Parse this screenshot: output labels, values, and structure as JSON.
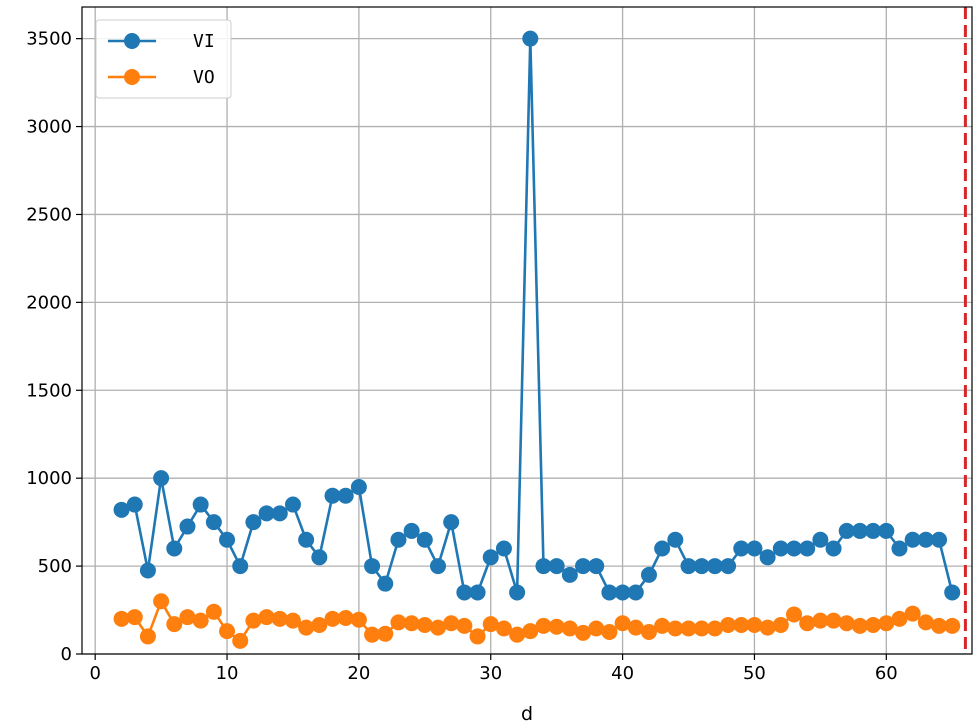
{
  "chart_data": {
    "type": "line",
    "xlabel": "d",
    "ylabel": "",
    "xlim": [
      -1,
      66.5
    ],
    "ylim": [
      0,
      3680
    ],
    "xticks": [
      0,
      10,
      20,
      30,
      40,
      50,
      60
    ],
    "yticks": [
      0,
      500,
      1000,
      1500,
      2000,
      2500,
      3000,
      3500
    ],
    "grid": true,
    "legend_position": "top-left",
    "vline": {
      "x": 66,
      "color": "#d62728",
      "style": "dashed"
    },
    "x": [
      2,
      3,
      4,
      5,
      6,
      7,
      8,
      9,
      10,
      11,
      12,
      13,
      14,
      15,
      16,
      17,
      18,
      19,
      20,
      21,
      22,
      23,
      24,
      25,
      26,
      27,
      28,
      29,
      30,
      31,
      32,
      33,
      34,
      35,
      36,
      37,
      38,
      39,
      40,
      41,
      42,
      43,
      44,
      45,
      46,
      47,
      48,
      49,
      50,
      51,
      52,
      53,
      54,
      55,
      56,
      57,
      58,
      59,
      60,
      61,
      62,
      63,
      64,
      65
    ],
    "series": [
      {
        "name": "VI",
        "color": "#1f77b4",
        "values": [
          820,
          850,
          475,
          1000,
          600,
          725,
          850,
          750,
          650,
          500,
          750,
          800,
          800,
          850,
          650,
          550,
          900,
          900,
          950,
          500,
          400,
          650,
          700,
          650,
          500,
          750,
          350,
          350,
          550,
          600,
          350,
          3500,
          500,
          500,
          450,
          500,
          500,
          350,
          350,
          350,
          450,
          600,
          650,
          500,
          500,
          500,
          500,
          600,
          600,
          550,
          600,
          600,
          600,
          650,
          600,
          700,
          700,
          700,
          700,
          600,
          650,
          650,
          650,
          350
        ]
      },
      {
        "name": "VO",
        "color": "#ff7f0e",
        "values": [
          200,
          210,
          100,
          300,
          170,
          210,
          190,
          240,
          130,
          75,
          190,
          210,
          200,
          190,
          150,
          165,
          200,
          205,
          195,
          110,
          115,
          180,
          175,
          165,
          150,
          175,
          160,
          100,
          170,
          145,
          110,
          130,
          160,
          155,
          145,
          120,
          145,
          125,
          175,
          150,
          125,
          160,
          145,
          145,
          145,
          145,
          165,
          165,
          165,
          150,
          165,
          225,
          175,
          190,
          190,
          175,
          160,
          165,
          175,
          200,
          230,
          180,
          160,
          160
        ]
      }
    ]
  }
}
